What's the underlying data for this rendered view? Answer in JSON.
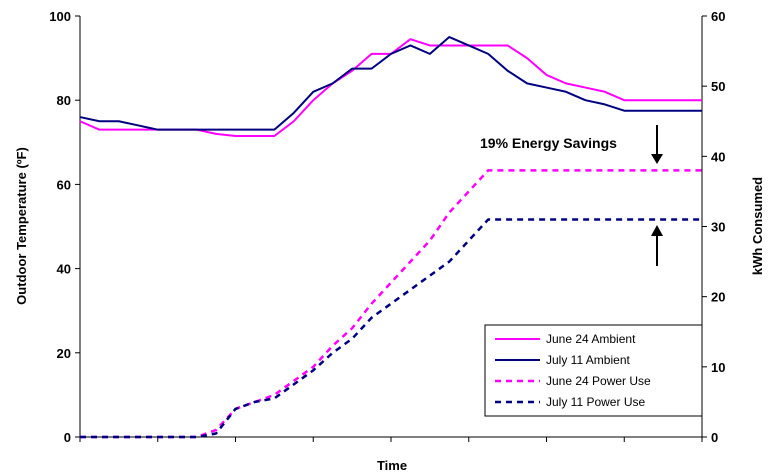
{
  "chart_data": {
    "type": "line",
    "xlabel": "Time",
    "ylabel": "Outdoor Temperature (ºF)",
    "y2label": "kWh Consumed",
    "ylim": [
      0,
      100
    ],
    "y2lim": [
      0,
      60
    ],
    "yticks": [
      "0",
      "20",
      "40",
      "60",
      "80",
      "100"
    ],
    "y2ticks": [
      "0",
      "10",
      "20",
      "30",
      "40",
      "50",
      "60"
    ],
    "x": [
      0,
      1,
      2,
      3,
      4,
      5,
      6,
      7,
      8,
      9,
      10,
      11,
      12,
      13,
      14,
      15,
      16,
      17,
      18,
      19,
      20,
      21,
      22,
      23,
      24,
      25,
      26,
      27,
      28,
      29,
      30,
      31,
      32
    ],
    "legend_position": "bottom-right",
    "annotation": "19% Energy Savings",
    "series": [
      {
        "name": "June 24 Ambient",
        "axis": "left",
        "style": "solid",
        "color": "#ff00ff",
        "values": [
          75,
          73,
          73,
          73,
          73,
          73,
          73,
          72,
          71.5,
          71.5,
          71.5,
          75,
          80,
          84,
          87,
          91,
          91,
          94.5,
          93,
          93,
          93,
          93,
          93,
          90,
          86,
          84,
          83,
          82,
          80,
          80,
          80,
          80,
          80
        ]
      },
      {
        "name": "July 11 Ambient",
        "axis": "left",
        "style": "solid",
        "color": "#000080",
        "values": [
          76,
          75,
          75,
          74,
          73,
          73,
          73,
          73,
          73,
          73,
          73,
          77,
          82,
          84,
          87.5,
          87.5,
          91,
          93,
          91,
          95,
          93,
          91,
          87,
          84,
          83,
          82,
          80,
          79,
          77.5,
          77.5,
          77.5,
          77.5,
          77.5
        ]
      },
      {
        "name": "June 24 Power Use",
        "axis": "right",
        "style": "dashed",
        "color": "#ff00ff",
        "values": [
          0,
          0,
          0,
          0,
          0,
          0,
          0,
          1,
          4,
          5,
          6,
          8,
          10,
          13,
          15.5,
          19,
          22,
          25,
          28,
          32,
          35,
          38,
          38,
          38,
          38,
          38,
          38,
          38,
          38,
          38,
          38,
          38,
          38
        ]
      },
      {
        "name": "July 11 Power Use",
        "axis": "right",
        "style": "dashed",
        "color": "#000080",
        "values": [
          0,
          0,
          0,
          0,
          0,
          0,
          0,
          0.5,
          4,
          5,
          5.5,
          7.5,
          9.5,
          12,
          14,
          17,
          19,
          21,
          23,
          25,
          28,
          31,
          31,
          31,
          31,
          31,
          31,
          31,
          31,
          31,
          31,
          31,
          31
        ]
      }
    ]
  }
}
